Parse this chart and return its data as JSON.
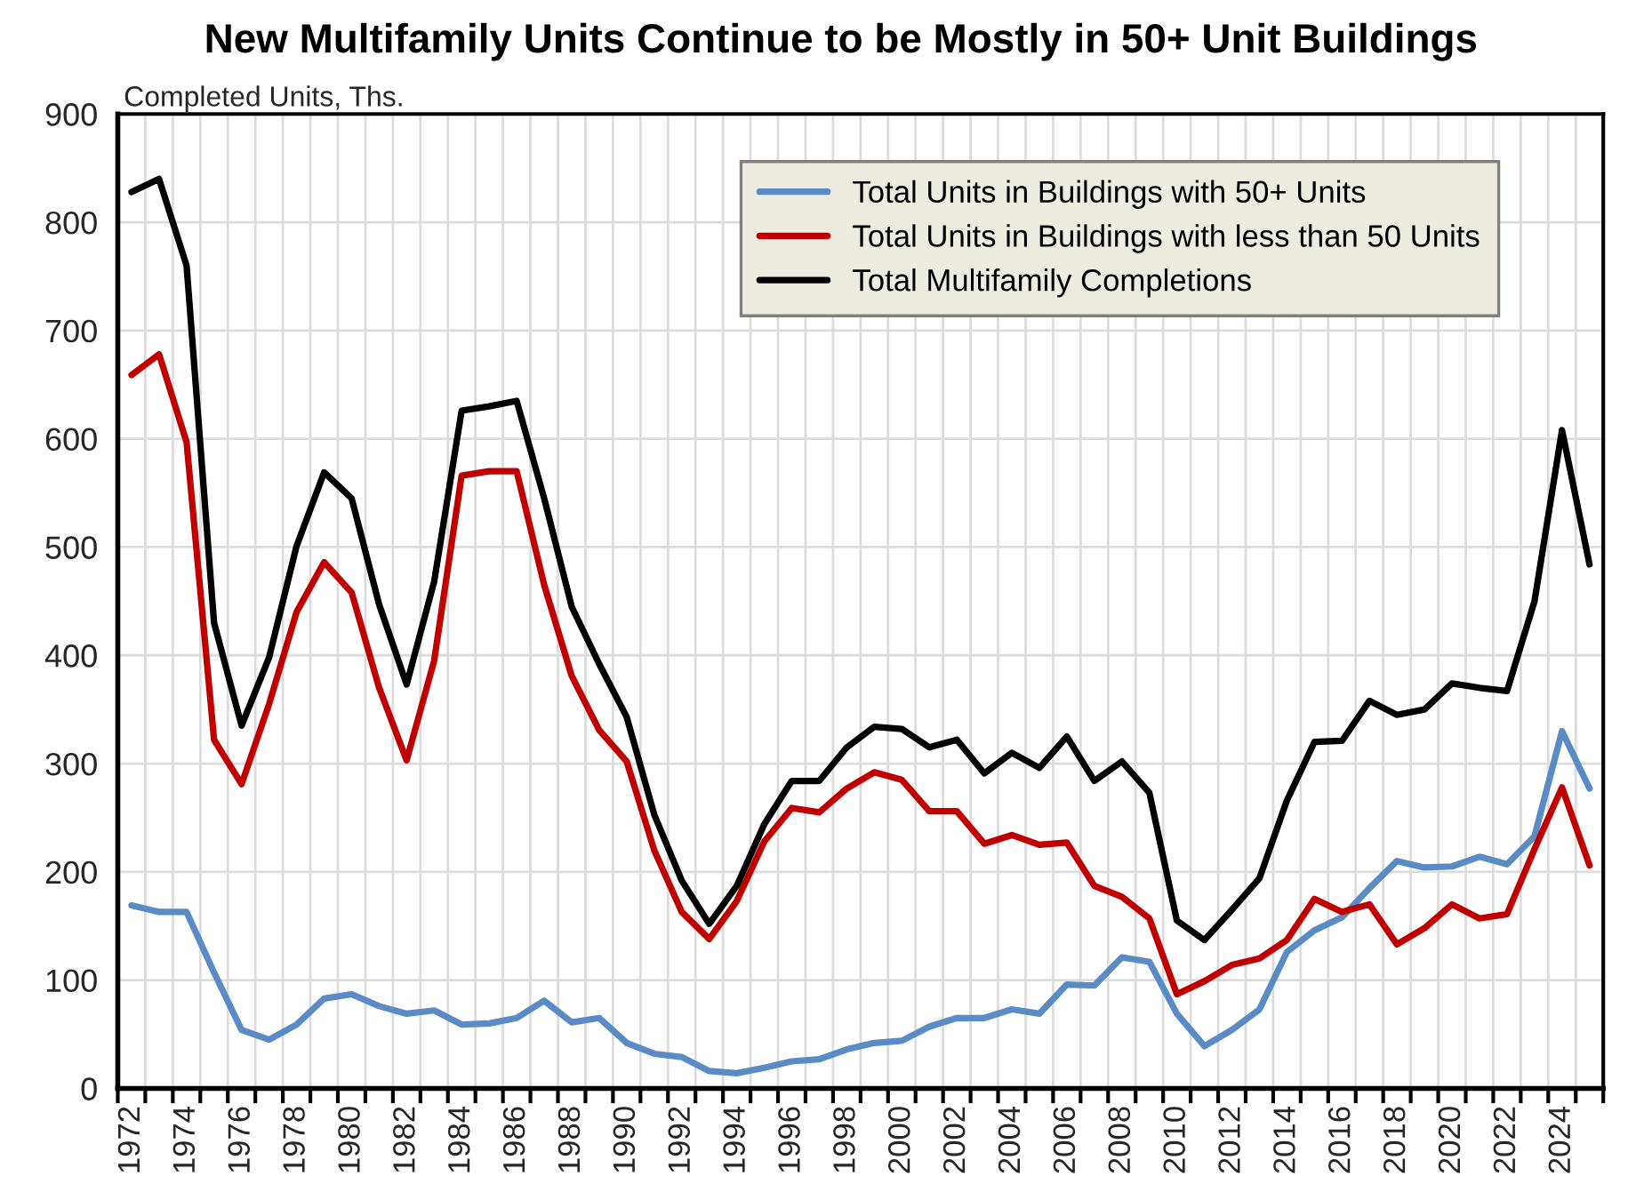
{
  "chart_data": {
    "type": "line",
    "title": "New Multifamily Units Continue to be Mostly in 50+ Unit Buildings",
    "ylabel": "Completed Units, Ths.",
    "categories": [
      "1972",
      null,
      "1974",
      null,
      "1976",
      null,
      "1978",
      null,
      "1980",
      null,
      "1982",
      null,
      "1984",
      null,
      "1986",
      null,
      "1988",
      null,
      "1990",
      null,
      "1992",
      null,
      "1994",
      null,
      "1996",
      null,
      "1998",
      null,
      "2000",
      null,
      "2002",
      null,
      "2004",
      null,
      "2006",
      null,
      "2008",
      null,
      "2010",
      null,
      "2012",
      null,
      "2014",
      null,
      "2016",
      null,
      "2018",
      null,
      "2020",
      null,
      "2022",
      null,
      "2024",
      null
    ],
    "series": [
      {
        "name": "Total Units in Buildings with 50+ Units",
        "color": "#5b8bc4",
        "values": [
          169,
          163,
          163,
          107,
          54,
          45,
          59,
          83,
          87,
          76,
          69,
          72,
          59,
          60,
          65,
          81,
          61,
          65,
          42,
          32,
          29,
          16,
          14,
          19,
          25,
          27,
          36,
          42,
          44,
          57,
          65,
          65,
          73,
          69,
          96,
          95,
          121,
          117,
          69,
          39,
          54,
          73,
          126,
          146,
          158,
          185,
          210,
          204,
          205,
          214,
          207,
          233,
          330,
          277
        ]
      },
      {
        "name": "Total Units in Buildings with less than 50 Units",
        "color": "#c00000",
        "values": [
          659,
          678,
          597,
          322,
          281,
          355,
          440,
          486,
          458,
          370,
          303,
          395,
          566,
          570,
          570,
          465,
          381,
          331,
          302,
          220,
          163,
          138,
          173,
          228,
          259,
          255,
          277,
          292,
          285,
          256,
          256,
          226,
          234,
          225,
          227,
          187,
          177,
          157,
          87,
          99,
          114,
          120,
          137,
          175,
          163,
          170,
          133,
          148,
          170,
          157,
          161,
          221,
          278,
          206
        ]
      },
      {
        "name": "Total Multifamily Completions",
        "color": "#000000",
        "values": [
          828,
          840,
          760,
          430,
          335,
          398,
          501,
          569,
          545,
          447,
          373,
          468,
          626,
          630,
          635,
          545,
          445,
          392,
          343,
          253,
          192,
          152,
          187,
          244,
          284,
          284,
          315,
          334,
          332,
          315,
          322,
          291,
          310,
          296,
          325,
          284,
          302,
          273,
          155,
          137,
          165,
          194,
          266,
          320,
          321,
          358,
          345,
          350,
          374,
          370,
          367,
          450,
          608,
          484
        ]
      }
    ],
    "ylim": [
      0,
      900
    ],
    "yticks": [
      0,
      100,
      200,
      300,
      400,
      500,
      600,
      700,
      800,
      900
    ],
    "grid": true,
    "legend": "top right"
  }
}
